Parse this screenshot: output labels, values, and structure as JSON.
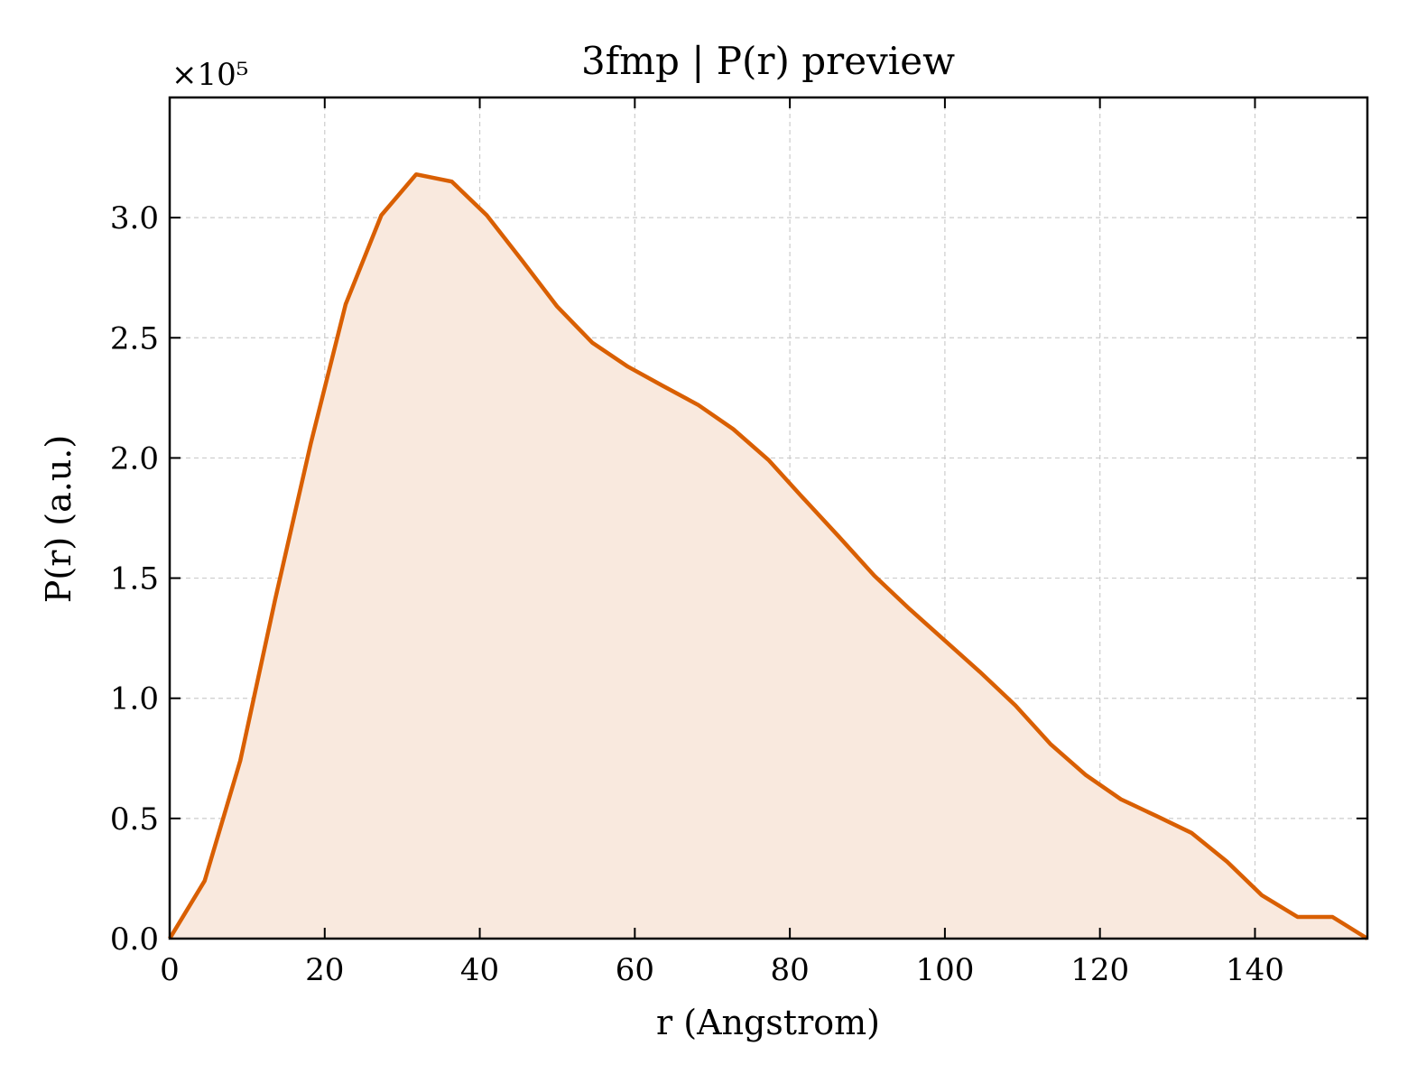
{
  "chart_data": {
    "type": "area",
    "title": "3fmp | P(r) preview",
    "xlabel": "r (Angstrom)",
    "ylabel": "P(r) (a.u.)",
    "y_multiplier_label": "×10⁵",
    "xlim": [
      0,
      154.5
    ],
    "ylim": [
      0,
      3.5
    ],
    "xticks": [
      0,
      20,
      40,
      60,
      80,
      100,
      120,
      140
    ],
    "yticks": [
      0.0,
      0.5,
      1.0,
      1.5,
      2.0,
      2.5,
      3.0
    ],
    "ytick_labels": [
      "0.0",
      "0.5",
      "1.0",
      "1.5",
      "2.0",
      "2.5",
      "3.0"
    ],
    "grid": true,
    "legend": "none",
    "line_color": "#d95f02",
    "fill_color": "#f9e9de",
    "x": [
      0,
      4.5,
      9.1,
      13.6,
      18.2,
      22.7,
      27.3,
      31.8,
      36.4,
      40.9,
      45.5,
      50.0,
      54.5,
      59.1,
      63.6,
      68.2,
      72.7,
      77.3,
      81.8,
      86.4,
      90.9,
      95.5,
      100.0,
      104.5,
      109.1,
      113.6,
      118.2,
      122.7,
      127.3,
      131.8,
      136.4,
      140.9,
      145.5,
      150.0,
      154.5
    ],
    "y": [
      0.0,
      0.24,
      0.74,
      1.41,
      2.06,
      2.64,
      3.01,
      3.18,
      3.15,
      3.01,
      2.82,
      2.63,
      2.48,
      2.38,
      2.3,
      2.22,
      2.12,
      1.99,
      1.83,
      1.67,
      1.51,
      1.37,
      1.24,
      1.11,
      0.97,
      0.81,
      0.68,
      0.58,
      0.51,
      0.44,
      0.32,
      0.18,
      0.09,
      0.09,
      0.0
    ]
  }
}
